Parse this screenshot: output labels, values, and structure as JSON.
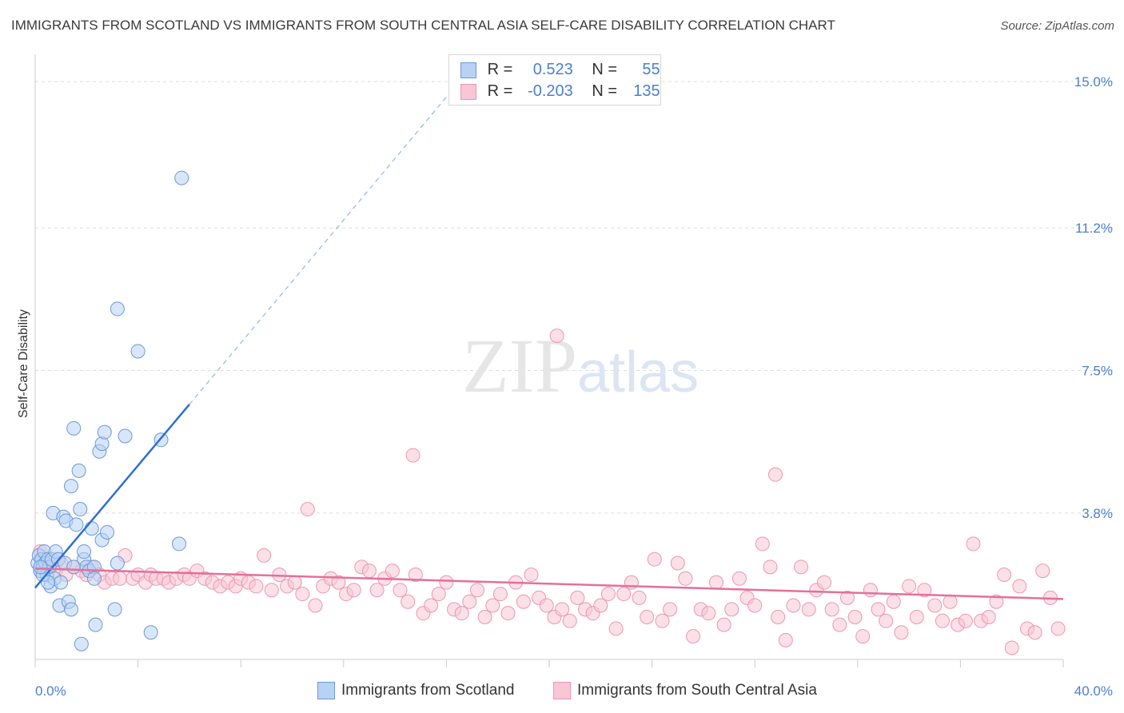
{
  "title": "IMMIGRANTS FROM SCOTLAND VS IMMIGRANTS FROM SOUTH CENTRAL ASIA SELF-CARE DISABILITY CORRELATION CHART",
  "source": "Source: ZipAtlas.com",
  "watermark": {
    "zip": "ZIP",
    "atlas": "atlas"
  },
  "legend": {
    "series1": {
      "r_label": "R =",
      "r_value": "0.523",
      "n_label": "N =",
      "n_value": "55"
    },
    "series2": {
      "r_label": "R =",
      "r_value": "-0.203",
      "n_label": "N =",
      "n_value": "135"
    }
  },
  "colors": {
    "scotland_fill": "#b8d2f4",
    "scotland_stroke": "#6c9ad8",
    "scotland_line": "#2e6fd1",
    "asia_fill": "#f8c6d4",
    "asia_stroke": "#ec97b2",
    "asia_line": "#e4709a",
    "axis_text": "#4a7fd4",
    "grid": "#dcdcdc"
  },
  "chart_data": {
    "type": "scatter",
    "title": "IMMIGRANTS FROM SCOTLAND VS IMMIGRANTS FROM SOUTH CENTRAL ASIA SELF-CARE DISABILITY CORRELATION CHART",
    "xlabel": "",
    "ylabel": "Self-Care Disability",
    "xlim": [
      0,
      40
    ],
    "ylim": [
      0,
      15.5
    ],
    "x_tick_labels": [
      "0.0%",
      "40.0%"
    ],
    "y_ticks": [
      3.8,
      7.5,
      11.2,
      15.0
    ],
    "y_tick_labels": [
      "3.8%",
      "7.5%",
      "11.2%",
      "15.0%"
    ],
    "grid": true,
    "legend_position": "bottom",
    "series": [
      {
        "name": "Immigrants from Scotland",
        "r": 0.523,
        "n": 55,
        "trend": {
          "x0": 0.0,
          "y0": 1.86,
          "x1": 6.0,
          "y1": 6.62,
          "dashed_to": [
            16.0,
            14.6
          ]
        },
        "points": [
          [
            0.1,
            2.5
          ],
          [
            0.15,
            2.7
          ],
          [
            0.2,
            2.3
          ],
          [
            0.25,
            2.6
          ],
          [
            0.3,
            2.4
          ],
          [
            0.35,
            2.8
          ],
          [
            0.4,
            2.5
          ],
          [
            0.45,
            2.2
          ],
          [
            0.5,
            2.6
          ],
          [
            0.55,
            2.4
          ],
          [
            0.6,
            1.9
          ],
          [
            0.65,
            2.6
          ],
          [
            0.7,
            3.8
          ],
          [
            0.75,
            2.1
          ],
          [
            0.8,
            2.8
          ],
          [
            0.9,
            2.6
          ],
          [
            0.95,
            1.4
          ],
          [
            1.0,
            2.0
          ],
          [
            1.1,
            3.7
          ],
          [
            1.15,
            2.5
          ],
          [
            1.2,
            3.6
          ],
          [
            1.3,
            1.5
          ],
          [
            1.4,
            1.3
          ],
          [
            1.4,
            4.5
          ],
          [
            1.5,
            2.4
          ],
          [
            1.5,
            6.0
          ],
          [
            1.6,
            3.5
          ],
          [
            1.7,
            4.9
          ],
          [
            1.75,
            3.9
          ],
          [
            1.8,
            0.4
          ],
          [
            1.9,
            2.6
          ],
          [
            1.9,
            2.8
          ],
          [
            2.0,
            2.4
          ],
          [
            2.1,
            2.3
          ],
          [
            2.2,
            3.4
          ],
          [
            2.3,
            2.4
          ],
          [
            2.3,
            2.1
          ],
          [
            2.35,
            0.9
          ],
          [
            2.5,
            5.4
          ],
          [
            2.6,
            3.1
          ],
          [
            2.6,
            5.6
          ],
          [
            2.7,
            5.9
          ],
          [
            2.8,
            3.3
          ],
          [
            3.1,
            1.3
          ],
          [
            3.2,
            2.5
          ],
          [
            3.2,
            9.1
          ],
          [
            3.5,
            5.8
          ],
          [
            4.0,
            8.0
          ],
          [
            4.5,
            0.7
          ],
          [
            4.9,
            5.7
          ],
          [
            5.6,
            3.0
          ],
          [
            5.7,
            12.5
          ],
          [
            0.3,
            2.2
          ],
          [
            0.5,
            2.0
          ],
          [
            0.2,
            2.4
          ]
        ]
      },
      {
        "name": "Immigrants from South Central Asia",
        "r": -0.203,
        "n": 135,
        "trend": {
          "x0": 0.0,
          "y0": 2.36,
          "x1": 40.0,
          "y1": 1.57
        },
        "points": [
          [
            0.2,
            2.8
          ],
          [
            0.4,
            2.6
          ],
          [
            0.6,
            2.4
          ],
          [
            0.8,
            2.3
          ],
          [
            1.0,
            2.5
          ],
          [
            1.2,
            2.2
          ],
          [
            1.5,
            2.4
          ],
          [
            1.8,
            2.3
          ],
          [
            2.0,
            2.2
          ],
          [
            2.2,
            2.4
          ],
          [
            2.5,
            2.2
          ],
          [
            2.7,
            2.0
          ],
          [
            3.0,
            2.1
          ],
          [
            3.3,
            2.1
          ],
          [
            3.5,
            2.7
          ],
          [
            3.8,
            2.1
          ],
          [
            4.0,
            2.2
          ],
          [
            4.3,
            2.0
          ],
          [
            4.5,
            2.2
          ],
          [
            4.7,
            2.1
          ],
          [
            5.0,
            2.1
          ],
          [
            5.2,
            2.0
          ],
          [
            5.5,
            2.1
          ],
          [
            5.8,
            2.2
          ],
          [
            6.0,
            2.1
          ],
          [
            6.3,
            2.3
          ],
          [
            6.6,
            2.1
          ],
          [
            6.9,
            2.0
          ],
          [
            7.2,
            1.9
          ],
          [
            7.5,
            2.0
          ],
          [
            7.8,
            1.9
          ],
          [
            8.0,
            2.1
          ],
          [
            8.3,
            2.0
          ],
          [
            8.6,
            1.9
          ],
          [
            8.9,
            2.7
          ],
          [
            9.2,
            1.8
          ],
          [
            9.5,
            2.2
          ],
          [
            9.8,
            1.9
          ],
          [
            10.1,
            2.0
          ],
          [
            10.4,
            1.7
          ],
          [
            10.6,
            3.9
          ],
          [
            10.9,
            1.4
          ],
          [
            11.2,
            1.9
          ],
          [
            11.5,
            2.1
          ],
          [
            11.8,
            2.0
          ],
          [
            12.1,
            1.7
          ],
          [
            12.4,
            1.8
          ],
          [
            12.7,
            2.4
          ],
          [
            13.0,
            2.3
          ],
          [
            13.3,
            1.8
          ],
          [
            13.6,
            2.1
          ],
          [
            13.9,
            2.3
          ],
          [
            14.2,
            1.8
          ],
          [
            14.5,
            1.5
          ],
          [
            14.8,
            2.2
          ],
          [
            15.1,
            1.2
          ],
          [
            15.4,
            1.4
          ],
          [
            15.7,
            1.7
          ],
          [
            16.0,
            2.0
          ],
          [
            16.3,
            1.3
          ],
          [
            16.6,
            1.2
          ],
          [
            16.9,
            1.5
          ],
          [
            17.2,
            1.8
          ],
          [
            17.5,
            1.1
          ],
          [
            17.8,
            1.4
          ],
          [
            18.1,
            1.7
          ],
          [
            18.4,
            1.2
          ],
          [
            18.7,
            2.0
          ],
          [
            19.0,
            1.5
          ],
          [
            19.3,
            2.2
          ],
          [
            19.6,
            1.6
          ],
          [
            19.9,
            1.4
          ],
          [
            20.2,
            1.1
          ],
          [
            20.5,
            1.3
          ],
          [
            20.8,
            1.0
          ],
          [
            21.1,
            1.6
          ],
          [
            21.4,
            1.3
          ],
          [
            21.7,
            1.2
          ],
          [
            22.0,
            1.4
          ],
          [
            22.3,
            1.7
          ],
          [
            22.6,
            0.8
          ],
          [
            22.9,
            1.7
          ],
          [
            23.2,
            2.0
          ],
          [
            23.5,
            1.6
          ],
          [
            23.8,
            1.1
          ],
          [
            24.1,
            2.6
          ],
          [
            24.4,
            1.0
          ],
          [
            24.7,
            1.3
          ],
          [
            25.0,
            2.5
          ],
          [
            25.3,
            2.1
          ],
          [
            25.6,
            0.6
          ],
          [
            25.9,
            1.3
          ],
          [
            26.2,
            1.2
          ],
          [
            26.5,
            2.0
          ],
          [
            26.8,
            0.9
          ],
          [
            27.1,
            1.3
          ],
          [
            27.4,
            2.1
          ],
          [
            27.7,
            1.6
          ],
          [
            28.0,
            1.4
          ],
          [
            28.3,
            3.0
          ],
          [
            28.6,
            2.4
          ],
          [
            28.9,
            1.1
          ],
          [
            29.2,
            0.5
          ],
          [
            29.5,
            1.4
          ],
          [
            29.8,
            2.4
          ],
          [
            30.1,
            1.3
          ],
          [
            30.4,
            1.8
          ],
          [
            30.7,
            2.0
          ],
          [
            31.0,
            1.3
          ],
          [
            31.3,
            0.9
          ],
          [
            31.6,
            1.6
          ],
          [
            31.9,
            1.1
          ],
          [
            32.2,
            0.6
          ],
          [
            32.5,
            1.8
          ],
          [
            32.8,
            1.3
          ],
          [
            33.1,
            1.0
          ],
          [
            33.4,
            1.5
          ],
          [
            33.7,
            0.7
          ],
          [
            34.0,
            1.9
          ],
          [
            34.3,
            1.1
          ],
          [
            34.6,
            1.8
          ],
          [
            35.0,
            1.4
          ],
          [
            35.3,
            1.0
          ],
          [
            35.6,
            1.5
          ],
          [
            35.9,
            0.9
          ],
          [
            36.2,
            1.0
          ],
          [
            36.5,
            3.0
          ],
          [
            36.8,
            1.0
          ],
          [
            37.1,
            1.1
          ],
          [
            37.4,
            1.5
          ],
          [
            37.7,
            2.2
          ],
          [
            38.0,
            0.3
          ],
          [
            38.3,
            1.9
          ],
          [
            38.6,
            0.8
          ],
          [
            38.9,
            0.7
          ],
          [
            39.2,
            2.3
          ],
          [
            39.5,
            1.6
          ],
          [
            39.8,
            0.8
          ],
          [
            20.3,
            8.4
          ],
          [
            14.7,
            5.3
          ],
          [
            28.8,
            4.8
          ]
        ]
      }
    ]
  },
  "bottom_legend": {
    "series1": "Immigrants from Scotland",
    "series2": "Immigrants from South Central Asia"
  }
}
